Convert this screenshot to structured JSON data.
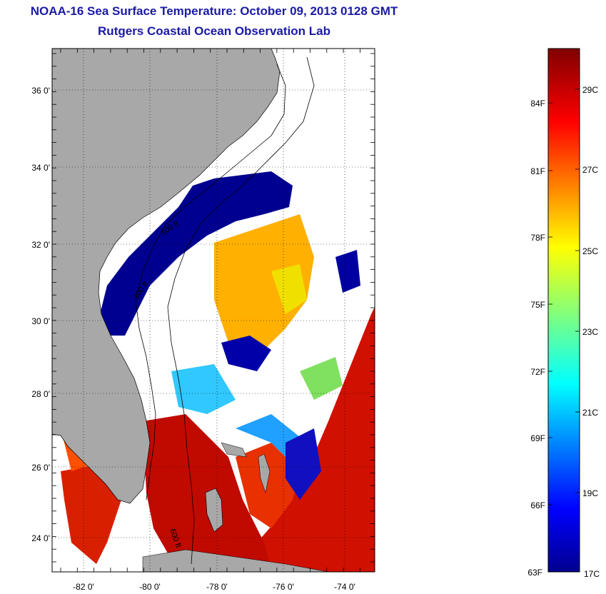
{
  "title": "NOAA-16 Sea Surface Temperature:  October 09, 2013 0128 GMT",
  "subtitle": "Rutgers Coastal Ocean Observation Lab",
  "map": {
    "lat_labels": [
      "36 0'",
      "34 0'",
      "32 0'",
      "30 0'",
      "28 0'",
      "26 0'",
      "24 0'"
    ],
    "lon_labels": [
      "-82 0'",
      "-80 0'",
      "-78 0'",
      "-76 0'",
      "-74 0'"
    ],
    "isobath_labels": [
      "100 ft",
      "100 ft",
      "600 ft"
    ],
    "land_color": "#a8a8a8",
    "cloud_color": "#ffffff"
  },
  "colorbar": {
    "fahrenheit_labels": [
      "84F",
      "81F",
      "78F",
      "75F",
      "72F",
      "69F",
      "66F",
      "63F"
    ],
    "celsius_labels": [
      "29C",
      "27C",
      "25C",
      "23C",
      "21C",
      "19C",
      "17C"
    ],
    "min_c": 17,
    "max_c": 30
  }
}
